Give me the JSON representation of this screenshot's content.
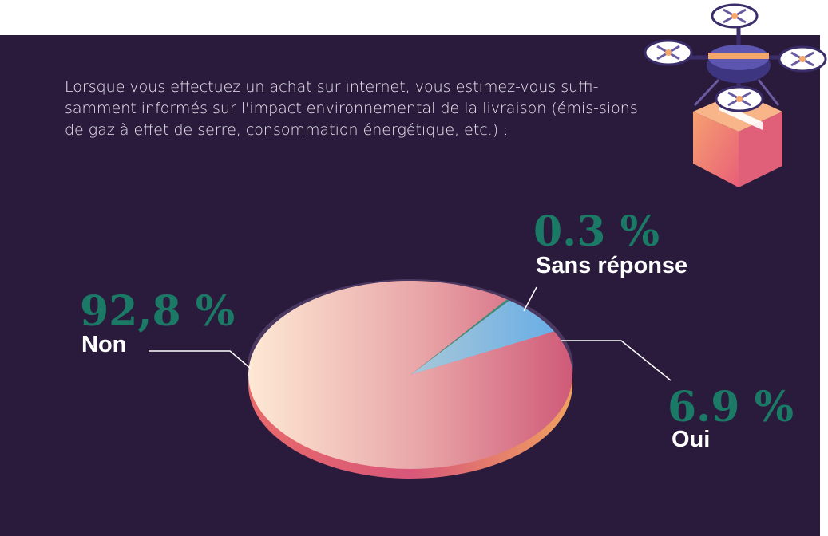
{
  "question": "Lorsque vous effectuez un achat sur internet, vous estimez-vous suffi-samment informés sur l'impact environnemental de la livraison (émis-sions de gaz à effet de serre, consommation énergétique, etc.) :",
  "colors": {
    "background": "#2a1b3d",
    "percent_text": "#1a7a66",
    "label_text": "#ffffff",
    "non_light": "#fde6d2",
    "non_dark": "#cf5a78",
    "oui": "#7ab6e0",
    "sans_reponse": "#3f8c78"
  },
  "chart_data": {
    "type": "pie",
    "title": "",
    "legend": "none",
    "slices": [
      {
        "label": "Non",
        "value": 92.8,
        "display": "92,8 %"
      },
      {
        "label": "Oui",
        "value": 6.9,
        "display": "6.9 %"
      },
      {
        "label": "Sans réponse",
        "value": 0.3,
        "display": "0.3 %"
      }
    ]
  },
  "illustration": "drone-delivery-icon"
}
